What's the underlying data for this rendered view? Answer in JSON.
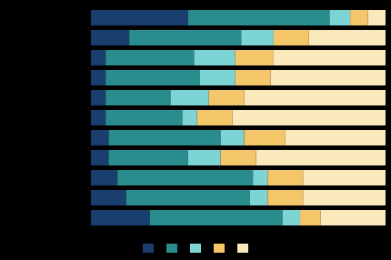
{
  "chart_data": {
    "type": "bar",
    "orientation": "horizontal",
    "stacked": true,
    "categories": [
      null,
      null,
      null,
      null,
      null,
      null,
      null,
      null,
      null,
      null,
      null
    ],
    "series": [
      {
        "color": "#1a3f6f",
        "values": [
          33,
          13,
          5,
          5,
          5,
          5,
          6,
          6,
          9,
          12,
          20
        ]
      },
      {
        "color": "#2a8c8c",
        "values": [
          48,
          38,
          30,
          32,
          22,
          26,
          38,
          27,
          46,
          42,
          45
        ]
      },
      {
        "color": "#7dd4d4",
        "values": [
          7,
          11,
          14,
          12,
          13,
          5,
          8,
          11,
          5,
          6,
          6
        ]
      },
      {
        "color": "#f5c56a",
        "values": [
          6,
          12,
          13,
          12,
          12,
          12,
          14,
          12,
          12,
          12,
          7
        ]
      },
      {
        "color": "#faeabb",
        "values": [
          6,
          26,
          38,
          39,
          48,
          52,
          34,
          44,
          28,
          28,
          22
        ]
      }
    ],
    "xlim": [
      0,
      100
    ],
    "tick_labels": false,
    "legend": "bottom"
  }
}
